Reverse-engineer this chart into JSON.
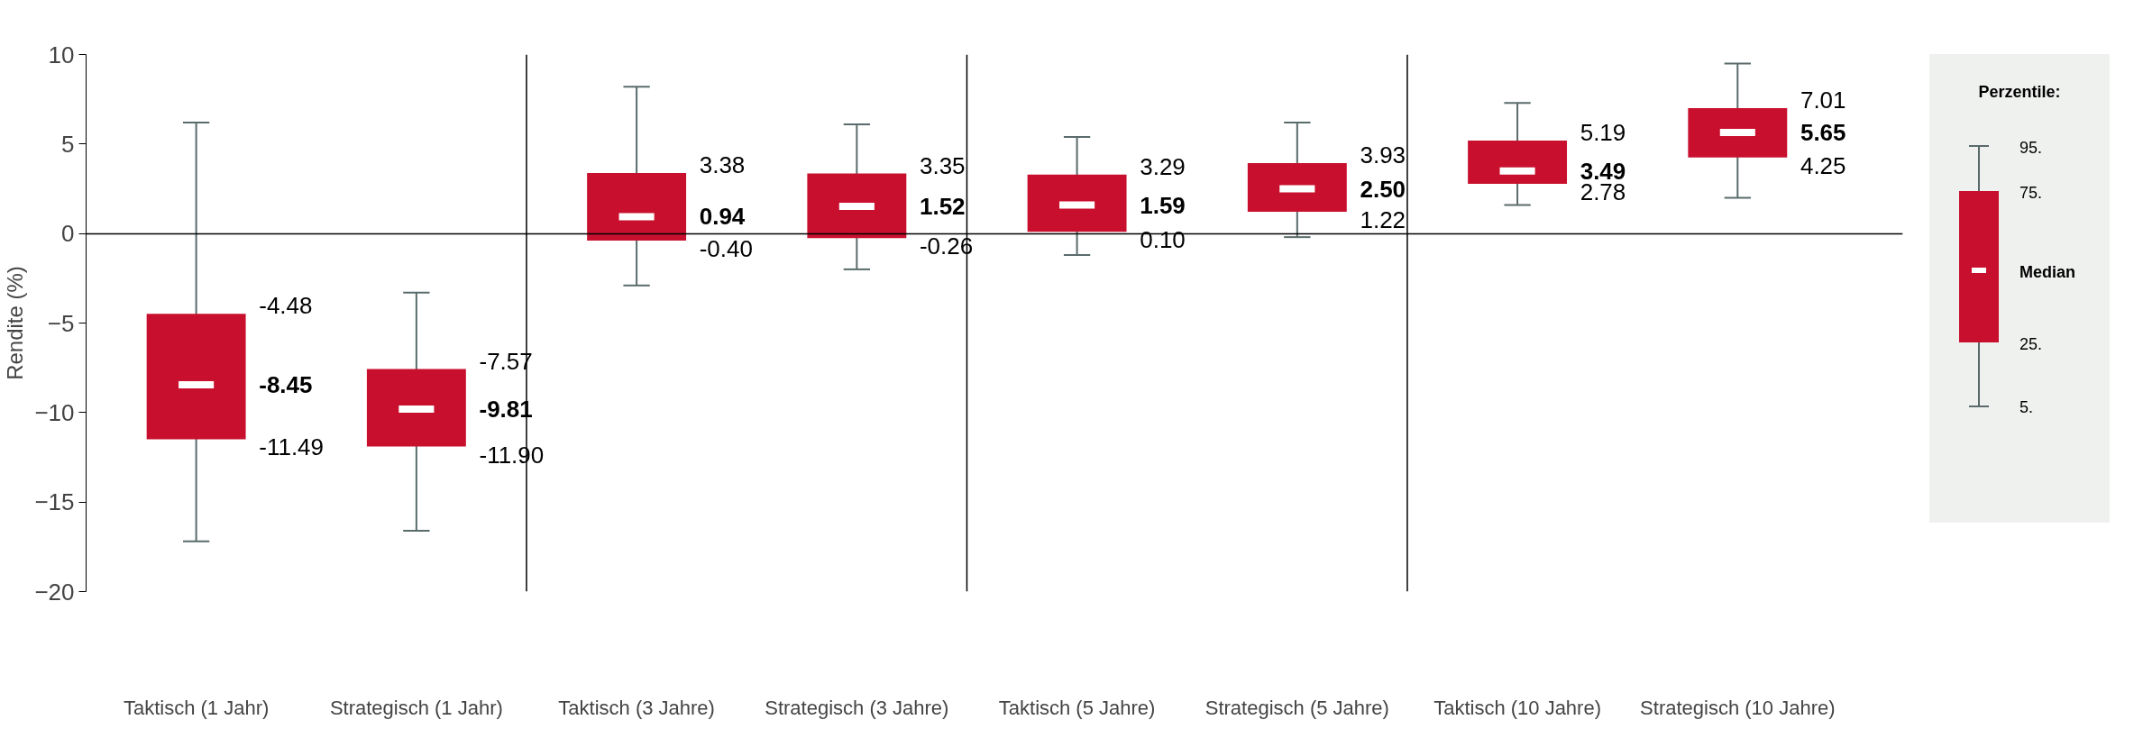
{
  "chart_data": {
    "type": "box",
    "ylabel": "Rendite (%)",
    "categories": [
      "Taktisch (1 Jahr)",
      "Strategisch (1 Jahr)",
      "Taktisch (3 Jahre)",
      "Strategisch (3 Jahre)",
      "Taktisch (5 Jahre)",
      "Strategisch (5 Jahre)",
      "Taktisch (10 Jahre)",
      "Strategisch (10 Jahre)"
    ],
    "boxes": [
      {
        "low": -17.2,
        "q1": -11.49,
        "median": -8.45,
        "q3": -4.48,
        "high": 6.2
      },
      {
        "low": -16.6,
        "q1": -11.9,
        "median": -9.81,
        "q3": -7.57,
        "high": -3.3
      },
      {
        "low": -2.9,
        "q1": -0.4,
        "median": 0.94,
        "q3": 3.38,
        "high": 8.2
      },
      {
        "low": -2.0,
        "q1": -0.26,
        "median": 1.52,
        "q3": 3.35,
        "high": 6.1
      },
      {
        "low": -1.2,
        "q1": 0.1,
        "median": 1.59,
        "q3": 3.29,
        "high": 5.4
      },
      {
        "low": -0.2,
        "q1": 1.22,
        "median": 2.5,
        "q3": 3.93,
        "high": 6.2
      },
      {
        "low": 1.6,
        "q1": 2.78,
        "median": 3.49,
        "q3": 5.19,
        "high": 7.3
      },
      {
        "low": 2.0,
        "q1": 4.25,
        "median": 5.65,
        "q3": 7.01,
        "high": 9.5
      }
    ],
    "color": "#c8102e",
    "ylim": [
      -20,
      10
    ],
    "yticks": [
      -20,
      -15,
      -10,
      -5,
      0,
      5,
      10
    ],
    "annotations": [
      "Perzentile:",
      "95.",
      "75.",
      "Median",
      "25.",
      "5.",
      "-4.48",
      "-8.45",
      "-11.49",
      "-7.57",
      "-9.81",
      "-11.90",
      "3.38",
      "0.94",
      "-0.40",
      "3.35",
      "1.52",
      "-0.26",
      "3.29",
      "1.59",
      "0.10",
      "3.93",
      "2.50",
      "1.22",
      "5.19",
      "3.49",
      "2.78",
      "7.01",
      "5.65",
      "4.25"
    ]
  }
}
